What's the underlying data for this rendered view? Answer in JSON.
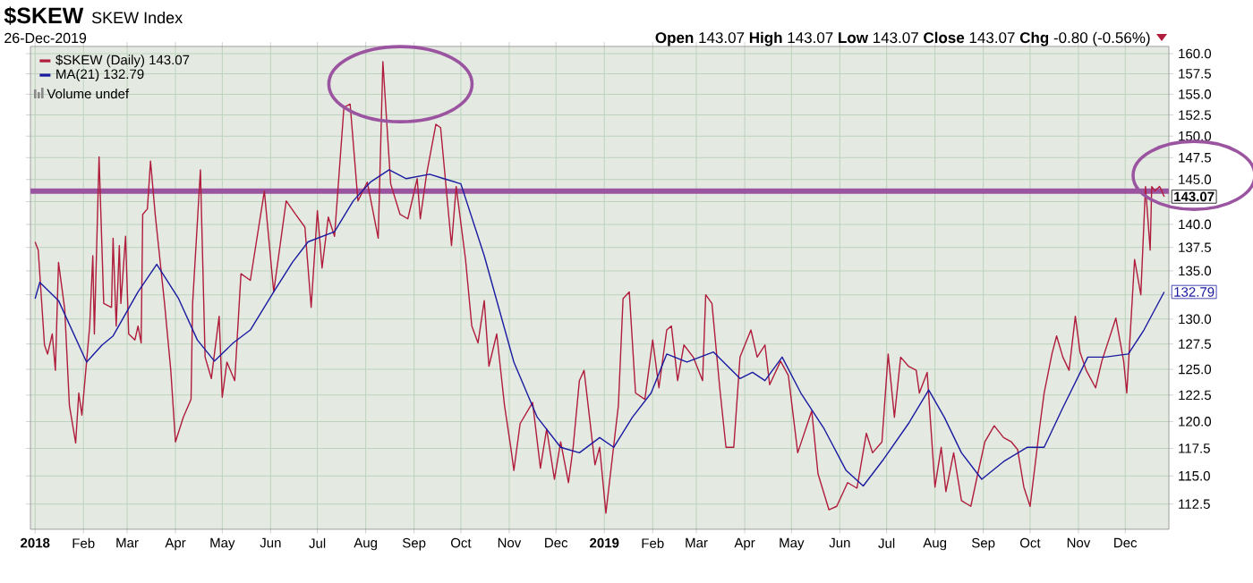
{
  "chart_data": {
    "type": "line",
    "title": "$SKEW",
    "subtitle": "SKEW Index",
    "annotations": [
      "26-Dec-2019",
      "**Open** 143.07  **High** 143.07  **Low** 143.07  **Close** 143.07  **Chg** -0.80 (-0.56%)",
      "Volume undef",
      {
        "text": "143.07",
        "x": "2019-12-26",
        "y": 143.07
      },
      {
        "text": "132.79",
        "x": "2019-12-26",
        "y": 132.79
      }
    ],
    "series": [
      {
        "name": "$SKEW (Daily) 143.07",
        "color": "#b01c3c",
        "x": [
          "2018-01-01",
          "2018-01-03",
          "2018-01-07",
          "2018-01-09",
          "2018-01-12",
          "2018-01-14",
          "2018-01-16",
          "2018-01-20",
          "2018-01-23",
          "2018-01-27",
          "2018-01-29",
          "2018-01-31",
          "2018-02-05",
          "2018-02-07",
          "2018-02-08",
          "2018-02-11",
          "2018-02-14",
          "2018-02-19",
          "2018-02-20",
          "2018-02-22",
          "2018-02-24",
          "2018-02-25",
          "2018-02-28",
          "2018-03-02",
          "2018-03-06",
          "2018-03-08",
          "2018-03-10",
          "2018-03-11",
          "2018-03-14",
          "2018-03-16",
          "2018-03-19",
          "2018-03-25",
          "2018-03-29",
          "2018-04-01",
          "2018-04-06",
          "2018-04-11",
          "2018-04-12",
          "2018-04-17",
          "2018-04-20",
          "2018-04-24",
          "2018-04-29",
          "2018-05-01",
          "2018-05-04",
          "2018-05-09",
          "2018-05-13",
          "2018-05-19",
          "2018-05-28",
          "2018-06-03",
          "2018-06-11",
          "2018-06-17",
          "2018-06-23",
          "2018-06-27",
          "2018-07-01",
          "2018-07-04",
          "2018-07-08",
          "2018-07-12",
          "2018-07-18",
          "2018-07-22",
          "2018-07-27",
          "2018-08-02",
          "2018-08-09",
          "2018-08-12",
          "2018-08-17",
          "2018-08-23",
          "2018-08-28",
          "2018-09-03",
          "2018-09-05",
          "2018-09-09",
          "2018-09-15",
          "2018-09-18",
          "2018-09-25",
          "2018-09-28",
          "2018-10-04",
          "2018-10-08",
          "2018-10-12",
          "2018-10-16",
          "2018-10-19",
          "2018-10-24",
          "2018-10-29",
          "2018-11-02",
          "2018-11-04",
          "2018-11-08",
          "2018-11-16",
          "2018-11-21",
          "2018-11-25",
          "2018-11-30",
          "2018-12-04",
          "2018-12-09",
          "2018-12-12",
          "2018-12-16",
          "2018-12-19",
          "2018-12-26",
          "2018-12-29",
          "2019-01-02",
          "2019-01-10",
          "2019-01-13",
          "2019-01-17",
          "2019-01-21",
          "2019-01-27",
          "2019-02-01",
          "2019-02-05",
          "2019-02-10",
          "2019-02-13",
          "2019-02-17",
          "2019-02-21",
          "2019-02-27",
          "2019-03-05",
          "2019-03-07",
          "2019-03-11",
          "2019-03-16",
          "2019-03-20",
          "2019-03-25",
          "2019-03-29",
          "2019-04-05",
          "2019-04-09",
          "2019-04-14",
          "2019-04-17",
          "2019-04-24",
          "2019-04-29",
          "2019-05-05",
          "2019-05-14",
          "2019-05-18",
          "2019-05-25",
          "2019-05-30",
          "2019-06-06",
          "2019-06-12",
          "2019-06-18",
          "2019-06-22",
          "2019-06-28",
          "2019-07-02",
          "2019-07-06",
          "2019-07-10",
          "2019-07-15",
          "2019-07-20",
          "2019-07-22",
          "2019-07-27",
          "2019-08-01",
          "2019-08-05",
          "2019-08-08",
          "2019-08-13",
          "2019-08-18",
          "2019-08-24",
          "2019-08-28",
          "2019-09-02",
          "2019-09-08",
          "2019-09-14",
          "2019-09-19",
          "2019-09-23",
          "2019-09-27",
          "2019-10-01",
          "2019-10-07",
          "2019-10-10",
          "2019-10-15",
          "2019-10-18",
          "2019-10-22",
          "2019-10-26",
          "2019-10-30",
          "2019-11-02",
          "2019-11-06",
          "2019-11-12",
          "2019-11-16",
          "2019-11-25",
          "2019-11-30",
          "2019-12-02",
          "2019-12-07",
          "2019-12-11",
          "2019-12-14",
          "2019-12-17",
          "2019-12-18",
          "2019-12-20",
          "2019-12-23",
          "2019-12-24",
          "2019-12-26"
        ],
        "values": [
          138.1,
          137.2,
          127.4,
          126.5,
          128.5,
          124.9,
          135.9,
          131.0,
          121.5,
          118.0,
          122.7,
          120.6,
          129.3,
          136.6,
          128.5,
          147.6,
          131.6,
          131.2,
          138.5,
          129.3,
          137.7,
          131.6,
          138.7,
          128.5,
          127.9,
          129.3,
          127.6,
          141.1,
          141.7,
          147.1,
          141.1,
          131.6,
          124.9,
          118.1,
          120.4,
          122.1,
          131.6,
          146.1,
          126.2,
          124.1,
          130.3,
          122.3,
          125.7,
          123.9,
          134.7,
          134.0,
          143.7,
          132.8,
          142.6,
          141.1,
          139.7,
          131.2,
          141.5,
          135.3,
          140.8,
          138.7,
          153.4,
          153.8,
          142.6,
          144.7,
          138.5,
          159.0,
          144.5,
          141.1,
          140.6,
          145.1,
          140.6,
          145.6,
          151.4,
          151.0,
          137.7,
          144.2,
          136.2,
          129.3,
          127.6,
          131.9,
          125.3,
          128.5,
          121.5,
          117.6,
          115.5,
          119.8,
          121.8,
          115.7,
          119.3,
          114.7,
          118.1,
          114.4,
          117.6,
          123.9,
          124.9,
          116.0,
          117.6,
          111.7,
          121.5,
          132.1,
          132.8,
          122.7,
          122.1,
          127.9,
          123.2,
          128.9,
          129.3,
          123.9,
          127.4,
          126.2,
          123.9,
          132.5,
          131.6,
          123.2,
          117.6,
          117.6,
          126.2,
          128.9,
          126.2,
          127.4,
          123.5,
          125.8,
          124.4,
          117.1,
          121.0,
          115.2,
          112.0,
          112.3,
          114.4,
          113.9,
          118.9,
          117.1,
          118.1,
          126.5,
          120.4,
          126.2,
          125.3,
          124.9,
          122.7,
          124.7,
          114.0,
          117.6,
          113.6,
          117.1,
          112.8,
          112.3,
          114.9,
          118.1,
          119.6,
          118.5,
          118.1,
          117.4,
          114.0,
          112.3,
          119.3,
          122.7,
          126.5,
          128.3,
          126.2,
          124.9,
          130.3,
          126.7,
          124.9,
          123.2,
          125.8,
          130.1,
          125.8,
          122.7,
          136.2,
          132.5,
          144.2,
          137.2,
          144.2,
          143.7,
          144.2,
          143.87,
          143.07
        ]
      },
      {
        "name": "MA(21) 132.79",
        "color": "#1a1aa0",
        "x": [
          "2018-01-01",
          "2018-01-04",
          "2018-01-16",
          "2018-02-03",
          "2018-02-13",
          "2018-02-20",
          "2018-03-08",
          "2018-03-20",
          "2018-04-03",
          "2018-04-15",
          "2018-04-26",
          "2018-05-08",
          "2018-05-19",
          "2018-06-03",
          "2018-06-15",
          "2018-06-25",
          "2018-07-12",
          "2018-07-24",
          "2018-08-04",
          "2018-08-16",
          "2018-08-27",
          "2018-09-11",
          "2018-09-20",
          "2018-10-01",
          "2018-10-16",
          "2018-11-04",
          "2018-11-19",
          "2018-12-04",
          "2018-12-16",
          "2018-12-29",
          "2019-01-07",
          "2019-01-19",
          "2019-01-31",
          "2019-02-10",
          "2019-02-23",
          "2019-03-12",
          "2019-03-29",
          "2019-04-06",
          "2019-04-14",
          "2019-04-25",
          "2019-05-07",
          "2019-05-22",
          "2019-06-05",
          "2019-06-16",
          "2019-06-29",
          "2019-07-15",
          "2019-07-28",
          "2019-08-07",
          "2019-08-18",
          "2019-08-31",
          "2019-09-14",
          "2019-09-29",
          "2019-10-10",
          "2019-10-22",
          "2019-11-07",
          "2019-11-18",
          "2019-12-03",
          "2019-12-13",
          "2019-12-26"
        ],
        "values": [
          132.1,
          133.8,
          131.9,
          125.7,
          127.4,
          128.3,
          132.8,
          135.7,
          132.1,
          127.9,
          125.8,
          127.6,
          128.9,
          132.8,
          135.9,
          138.1,
          139.2,
          142.6,
          144.7,
          146.1,
          145.1,
          145.6,
          145.1,
          144.5,
          136.6,
          125.7,
          120.4,
          117.6,
          117.1,
          118.5,
          117.6,
          120.4,
          122.7,
          126.5,
          125.7,
          126.7,
          124.1,
          124.7,
          123.9,
          126.2,
          122.7,
          119.3,
          115.5,
          114.1,
          116.5,
          119.8,
          123.0,
          120.4,
          117.1,
          114.7,
          116.3,
          117.6,
          117.6,
          121.3,
          126.2,
          126.2,
          126.5,
          128.9,
          132.79
        ]
      }
    ],
    "ref_lines": [
      {
        "axis": "y",
        "value": 143.7,
        "color": "#9b55a0"
      }
    ],
    "xlim": [
      "2017-12-29",
      "2019-12-29"
    ],
    "xticks": [
      {
        "value": "2018-01-01",
        "label": "2018"
      },
      {
        "value": "2018-02-01",
        "label": "Feb"
      },
      {
        "value": "2018-03-01",
        "label": "Mar"
      },
      {
        "value": "2018-04-01",
        "label": "Apr"
      },
      {
        "value": "2018-05-01",
        "label": "May"
      },
      {
        "value": "2018-06-01",
        "label": "Jun"
      },
      {
        "value": "2018-07-01",
        "label": "Jul"
      },
      {
        "value": "2018-08-01",
        "label": "Aug"
      },
      {
        "value": "2018-09-01",
        "label": "Sep"
      },
      {
        "value": "2018-10-01",
        "label": "Oct"
      },
      {
        "value": "2018-11-01",
        "label": "Nov"
      },
      {
        "value": "2018-12-01",
        "label": "Dec"
      },
      {
        "value": "2019-01-01",
        "label": "2019"
      },
      {
        "value": "2019-02-01",
        "label": "Feb"
      },
      {
        "value": "2019-03-01",
        "label": "Mar"
      },
      {
        "value": "2019-04-01",
        "label": "Apr"
      },
      {
        "value": "2019-05-01",
        "label": "May"
      },
      {
        "value": "2019-06-01",
        "label": "Jun"
      },
      {
        "value": "2019-07-01",
        "label": "Jul"
      },
      {
        "value": "2019-08-01",
        "label": "Aug"
      },
      {
        "value": "2019-09-01",
        "label": "Sep"
      },
      {
        "value": "2019-10-01",
        "label": "Oct"
      },
      {
        "value": "2019-11-01",
        "label": "Nov"
      },
      {
        "value": "2019-12-01",
        "label": "Dec"
      }
    ],
    "ylim": [
      110.3,
      160.9
    ],
    "yticks": [
      {
        "value": 112.5,
        "label": "112.5"
      },
      {
        "value": 115,
        "label": "115.0"
      },
      {
        "value": 117.5,
        "label": "117.5"
      },
      {
        "value": 120,
        "label": "120.0"
      },
      {
        "value": 122.5,
        "label": "122.5"
      },
      {
        "value": 125,
        "label": "125.0"
      },
      {
        "value": 127.5,
        "label": "127.5"
      },
      {
        "value": 130,
        "label": "130.0"
      },
      {
        "value": 132.5,
        "label": null
      },
      {
        "value": 135,
        "label": "135.0"
      },
      {
        "value": 137.5,
        "label": "137.5"
      },
      {
        "value": 140,
        "label": "140.0"
      },
      {
        "value": 142.5,
        "label": null
      },
      {
        "value": 145,
        "label": "145.0"
      },
      {
        "value": 147.5,
        "label": "147.5"
      },
      {
        "value": 150,
        "label": "150.0"
      },
      {
        "value": 152.5,
        "label": "152.5"
      },
      {
        "value": 155,
        "label": "155.0"
      },
      {
        "value": 157.5,
        "label": "157.5"
      },
      {
        "value": 160,
        "label": "160.0"
      }
    ],
    "log": "y",
    "grid": true,
    "legend": "top left"
  }
}
